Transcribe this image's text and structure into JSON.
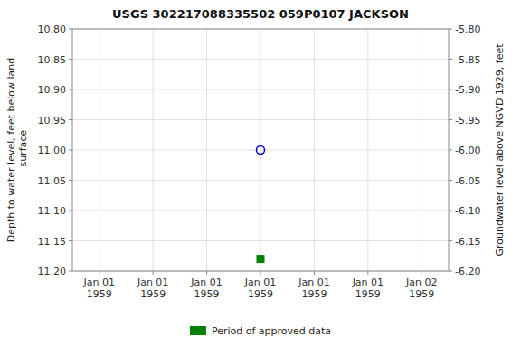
{
  "chart_data": {
    "type": "scatter",
    "title": "USGS 302217088335502 059P0107  JACKSON",
    "ylabel": "Depth to water level, feet below land\n surface",
    "y2label": "Groundwater level above NGVD 1929, feet",
    "categories": [
      "Jan 01\n1959",
      "Jan 01\n1959",
      "Jan 01\n1959",
      "Jan 01\n1959",
      "Jan 01\n1959",
      "Jan 01\n1959",
      "Jan 02\n1959"
    ],
    "series": [
      {
        "color": "#0000cd",
        "marker": "circle",
        "values": [
          null,
          null,
          null,
          11.0,
          null,
          null,
          null
        ]
      },
      {
        "name": "Period of approved data",
        "color": "#008000",
        "marker": "square",
        "values": [
          null,
          null,
          null,
          11.18,
          null,
          null,
          null
        ]
      }
    ],
    "ylim": [
      11.2,
      10.8
    ],
    "yticks": [
      {
        "value": 10.8,
        "label": "10.80"
      },
      10.85,
      {
        "value": 10.9,
        "label": "10.90"
      },
      10.95,
      {
        "value": 11.0,
        "label": "11.00"
      },
      11.05,
      {
        "value": 11.1,
        "label": "11.10"
      },
      11.15,
      {
        "value": 11.2,
        "label": "11.20"
      }
    ],
    "y2lim": [
      -6.2,
      -5.8
    ],
    "y2ticks": [
      {
        "value": -5.8,
        "label": "-5.80"
      },
      -5.85,
      {
        "value": -5.9,
        "label": "-5.90"
      },
      -5.95,
      {
        "value": -6.0,
        "label": "-6.00"
      },
      -6.05,
      {
        "value": -6.1,
        "label": "-6.10"
      },
      -6.15,
      {
        "value": -6.2,
        "label": "-6.20"
      }
    ],
    "grid": true,
    "legend": "bottom"
  }
}
